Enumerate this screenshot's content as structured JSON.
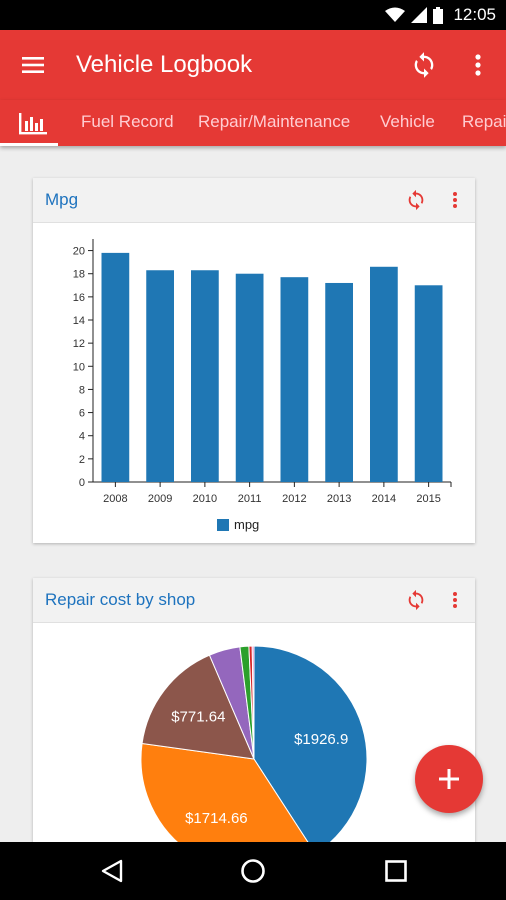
{
  "status_bar": {
    "time": "12:05"
  },
  "app_bar": {
    "title": "Vehicle Logbook"
  },
  "tabs": [
    {
      "label": "Fuel Record"
    },
    {
      "label": "Repair/Maintenance"
    },
    {
      "label": "Vehicle"
    },
    {
      "label": "Repair"
    }
  ],
  "colors": {
    "primary": "#e53935",
    "series": "#1f77b4",
    "title_blue": "#1e73be"
  },
  "cards": {
    "mpg": {
      "title": "Mpg"
    },
    "repair": {
      "title": "Repair cost by shop"
    }
  },
  "chart_data": [
    {
      "type": "bar",
      "title": "Mpg",
      "categories": [
        "2008",
        "2009",
        "2010",
        "2011",
        "2012",
        "2013",
        "2014",
        "2015"
      ],
      "series": [
        {
          "name": "mpg",
          "values": [
            19.8,
            18.3,
            18.3,
            18.0,
            17.7,
            17.2,
            18.6,
            17.0
          ]
        }
      ],
      "yticks": [
        0,
        2,
        4,
        6,
        8,
        10,
        12,
        14,
        16,
        18,
        20
      ],
      "ylim": [
        0,
        21
      ],
      "legend": "bottom-center"
    },
    {
      "type": "pie",
      "title": "Repair cost by shop",
      "slices": [
        {
          "value": 1926.9,
          "label": "$1926.9",
          "color": "#1f77b4"
        },
        {
          "value": 1714.66,
          "label": "$1714.66",
          "color": "#ff7f0e"
        },
        {
          "value": 771.64,
          "label": "$771.64",
          "color": "#8c564b"
        },
        {
          "value": 210,
          "label": "",
          "color": "#9467bd"
        },
        {
          "value": 60,
          "label": "",
          "color": "#2ca02c"
        },
        {
          "value": 22,
          "label": "",
          "color": "#d62728"
        },
        {
          "value": 12,
          "label": "",
          "color": "#e377c2"
        }
      ]
    }
  ]
}
